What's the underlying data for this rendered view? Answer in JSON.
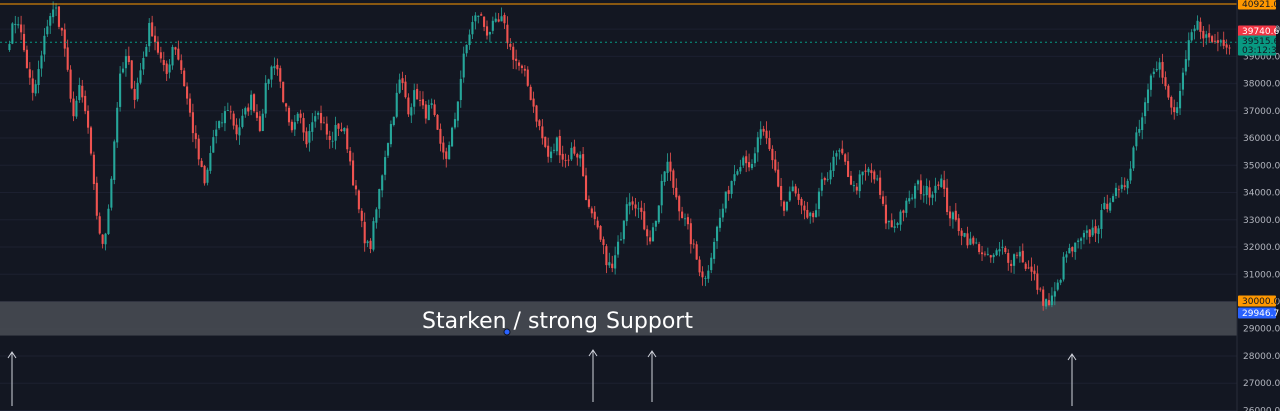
{
  "chart_data": {
    "type": "candlestick",
    "ylim": [
      26000,
      41000
    ],
    "y_ticks": [
      "26000.0",
      "27000.0",
      "28000.0",
      "29000.0",
      "30000.0",
      "31000.0",
      "32000.0",
      "33000.0",
      "34000.0",
      "35000.0",
      "36000.0",
      "37000.0",
      "38000.0",
      "39000.0",
      "40000.0"
    ],
    "price_tags": [
      {
        "label": "40921.0",
        "value": 40921,
        "color": "#ff9800",
        "text_color": "#131722"
      },
      {
        "label": "39740.6",
        "value": 39740.6,
        "color": "#f23645",
        "text_color": "#ffffff"
      },
      {
        "label": "39515.6",
        "value": 39515.6,
        "color": "#089981",
        "text_color": "#131722"
      },
      {
        "label": "03:12:32",
        "value": 39160,
        "color": "#089981",
        "text_color": "#131722"
      },
      {
        "label": "30000.0",
        "value": 30000,
        "color": "#ff9800",
        "text_color": "#131722"
      },
      {
        "label": "29946.7",
        "value": 29946.7,
        "color": "#2962ff",
        "text_color": "#ffffff"
      }
    ],
    "resistance_line": 40921,
    "last_price_line": 39515.6,
    "support_zone": [
      28750,
      30000
    ],
    "close_path": [
      39700,
      40500,
      39000,
      37500,
      38800,
      40500,
      40700,
      39500,
      36800,
      37800,
      36500,
      33500,
      31800,
      34500,
      38000,
      39000,
      37500,
      38800,
      40200,
      39200,
      38200,
      39600,
      38500,
      37000,
      35500,
      34200,
      36000,
      36500,
      37200,
      36200,
      36800,
      37500,
      36400,
      38200,
      38900,
      37500,
      36000,
      36800,
      36000,
      37100,
      36600,
      35800,
      36500,
      36100,
      34400,
      32800,
      31800,
      33500,
      35400,
      36800,
      38200,
      37100,
      37700,
      36900,
      37100,
      35700,
      35300,
      36800,
      38800,
      40100,
      40600,
      39900,
      40100,
      40300,
      39300,
      38700,
      38200,
      37200,
      36100,
      35200,
      35900,
      35100,
      35600,
      35300,
      33400,
      32700,
      31800,
      31100,
      32200,
      33900,
      33700,
      32900,
      32300,
      33500,
      35200,
      34100,
      33200,
      32400,
      31400,
      30800,
      32200,
      33200,
      34200,
      35000,
      35400,
      34800,
      36400,
      35600,
      34700,
      33300,
      34200,
      33600,
      32900,
      33200,
      34400,
      34900,
      35500,
      34900,
      34100,
      34600,
      34800,
      34300,
      33000,
      32700,
      33300,
      33600,
      34300,
      34000,
      34100,
      34600,
      33300,
      32900,
      32500,
      32100,
      32000,
      31500,
      31700,
      31900,
      31500,
      31900,
      31300,
      30900,
      30100,
      29900,
      30500,
      31700,
      31900,
      32200,
      32500,
      32700,
      33400,
      34000,
      33900,
      34600,
      36100,
      37000,
      38600,
      38800,
      37500,
      36800,
      38100,
      39700,
      40200,
      39700,
      39500,
      39600,
      39500
    ],
    "annotations": {
      "starken": "Starken / strong",
      "support": "Support"
    },
    "arrows_count": 4,
    "colors": {
      "up": "#26a69a",
      "down": "#ef5350",
      "background": "#131722",
      "zone": "#4a4d55"
    }
  }
}
